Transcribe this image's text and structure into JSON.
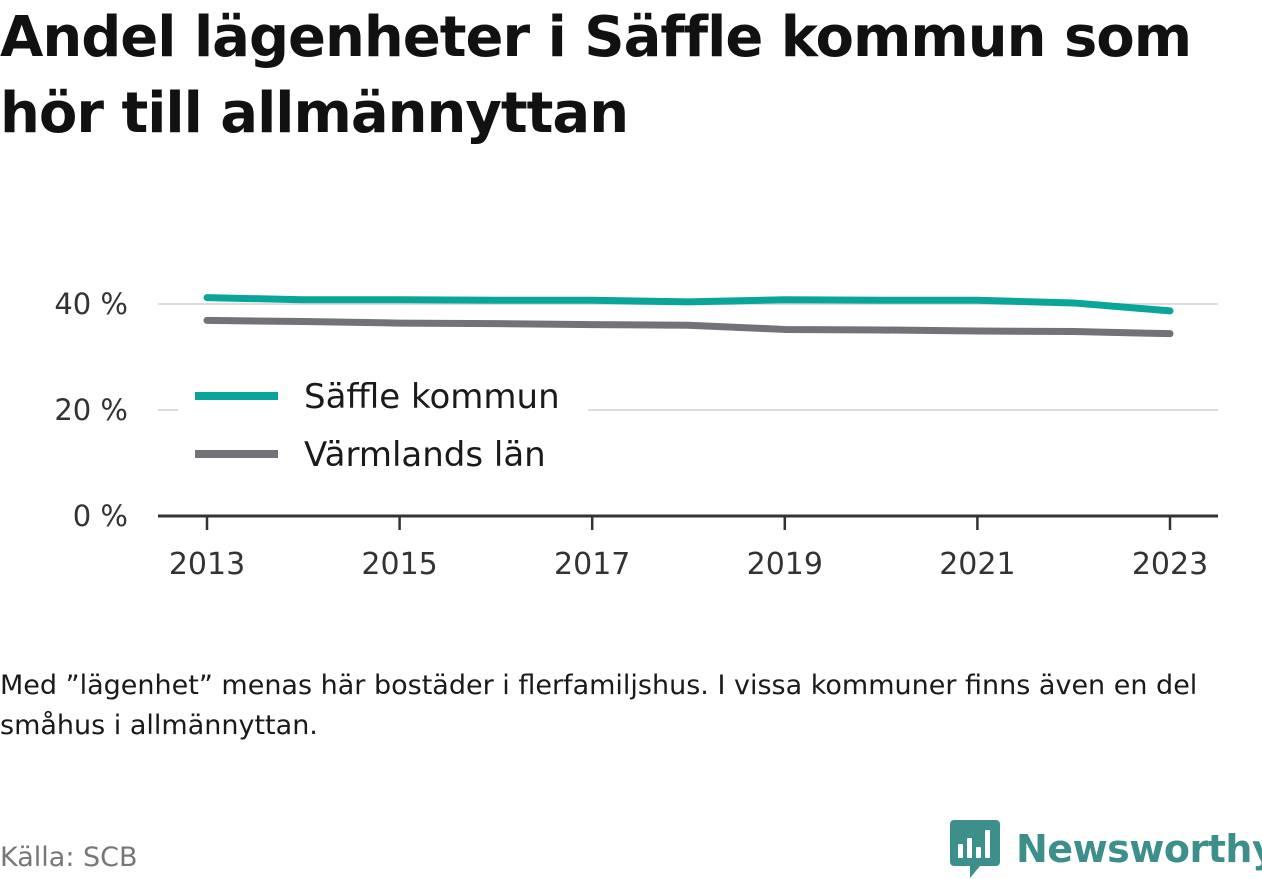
{
  "title": "Andel lägenheter i Säffle kommun som hör till allmännyttan",
  "note": "Med ”lägenhet” menas här bostäder i flerfamiljshus. I vissa kommuner finns även en del småhus i allmännyttan.",
  "source": "Källa: SCB",
  "brand": {
    "name": "Newsworthy",
    "icon": "bar-chart-icon",
    "color": "#3d8f8b"
  },
  "chart_data": {
    "type": "line",
    "x": [
      2013,
      2014,
      2015,
      2016,
      2017,
      2018,
      2019,
      2020,
      2021,
      2022,
      2023
    ],
    "xticks": [
      2013,
      2015,
      2017,
      2019,
      2021,
      2023
    ],
    "xtick_labels": [
      "2013",
      "2015",
      "2017",
      "2019",
      "2021",
      "2023"
    ],
    "ylim": [
      0,
      45
    ],
    "yticks": [
      0,
      20,
      40
    ],
    "ytick_labels": [
      "0 %",
      "20 %",
      "40 %"
    ],
    "grid": true,
    "legend_position": "center-left",
    "series": [
      {
        "name": "Säffle kommun",
        "color": "#0aa59a",
        "values": [
          41.2,
          40.8,
          40.8,
          40.7,
          40.7,
          40.4,
          40.8,
          40.7,
          40.7,
          40.2,
          38.7
        ]
      },
      {
        "name": "Värmlands län",
        "color": "#737278",
        "values": [
          36.9,
          36.7,
          36.4,
          36.3,
          36.1,
          36.0,
          35.2,
          35.1,
          34.9,
          34.8,
          34.4
        ]
      }
    ]
  }
}
